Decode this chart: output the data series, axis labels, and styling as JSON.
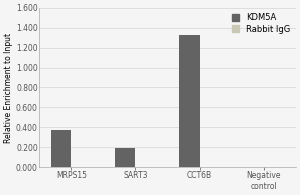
{
  "categories": [
    "MRPS15",
    "SART3",
    "CCT6B",
    "Negative\ncontrol"
  ],
  "kdm5a_values": [
    0.375,
    0.195,
    1.33,
    0.005
  ],
  "rabbit_igg_values": [
    0.005,
    0.005,
    0.005,
    0.005
  ],
  "kdm5a_color": "#636363",
  "rabbit_igg_color": "#c8c8b4",
  "bar_width": 0.32,
  "ylim": [
    0,
    1.6
  ],
  "yticks": [
    0.0,
    0.2,
    0.4,
    0.6,
    0.8,
    1.0,
    1.2,
    1.4,
    1.6
  ],
  "ylabel": "Relative Enrichment to Input",
  "legend_labels": [
    "KDM5A",
    "Rabbit IgG"
  ],
  "background_color": "#f5f5f5",
  "axis_fontsize": 5.5,
  "tick_fontsize": 5.5,
  "legend_fontsize": 6.0
}
